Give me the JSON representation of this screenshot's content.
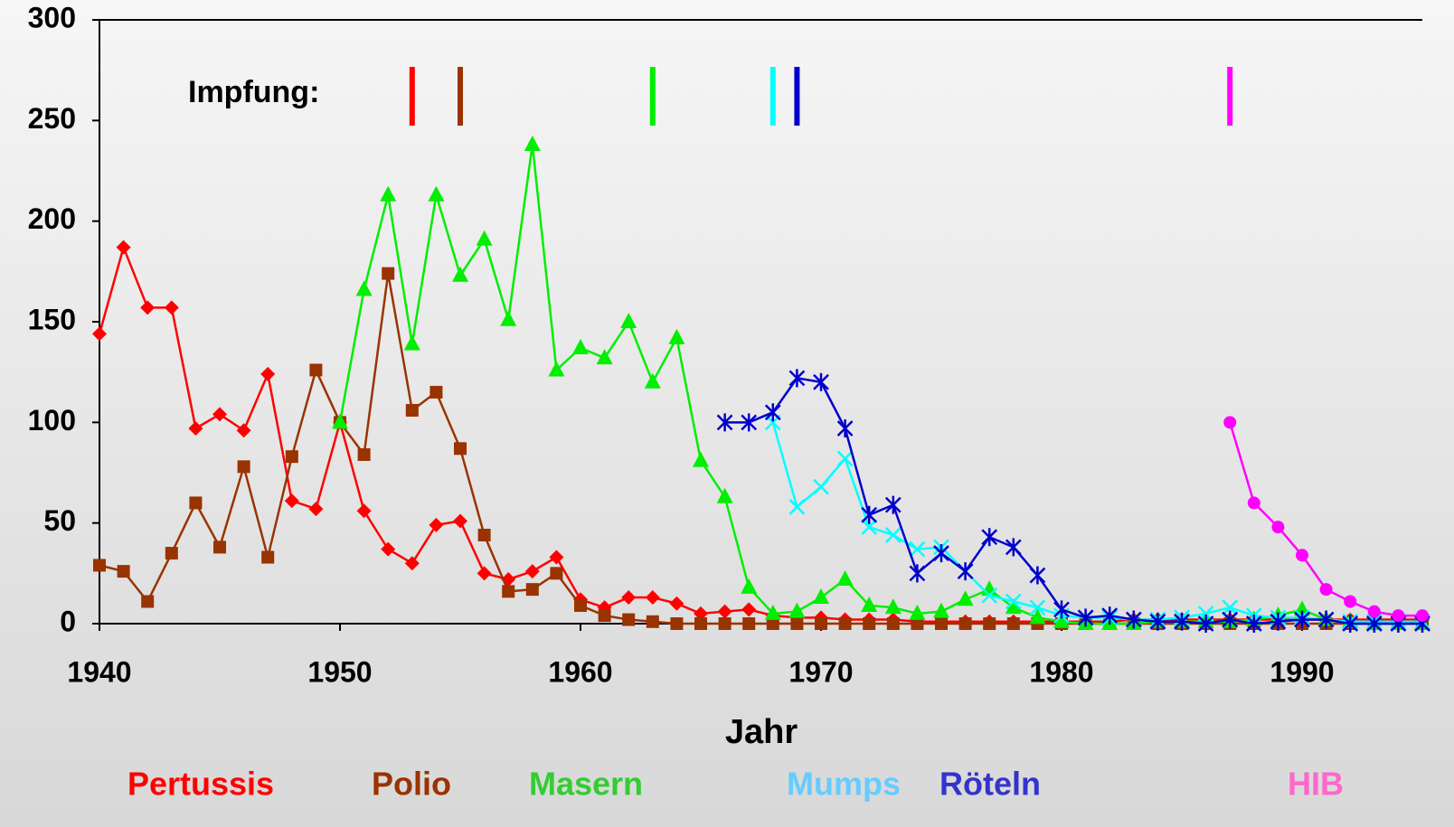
{
  "chart_data": {
    "type": "line",
    "xlabel": "Jahr",
    "annotation": "Impfung:",
    "x": [
      1940,
      1941,
      1942,
      1943,
      1944,
      1945,
      1946,
      1947,
      1948,
      1949,
      1950,
      1951,
      1952,
      1953,
      1954,
      1955,
      1956,
      1957,
      1958,
      1959,
      1960,
      1961,
      1962,
      1963,
      1964,
      1965,
      1966,
      1967,
      1968,
      1969,
      1970,
      1971,
      1972,
      1973,
      1974,
      1975,
      1976,
      1977,
      1978,
      1979,
      1980,
      1981,
      1982,
      1983,
      1984,
      1985,
      1986,
      1987,
      1988,
      1989,
      1990,
      1991,
      1992,
      1993,
      1994,
      1995
    ],
    "xlim": [
      1940,
      1995
    ],
    "xticks": [
      1940,
      1950,
      1960,
      1970,
      1980,
      1990
    ],
    "ylim": [
      0,
      300
    ],
    "yticks": [
      0,
      50,
      100,
      150,
      200,
      250,
      300
    ],
    "series": [
      {
        "name": "Pertussis",
        "color": "#ff0000",
        "legend_color": "#ff0000",
        "marker": "diamond",
        "vaccination": 1953,
        "values": [
          144,
          187,
          157,
          157,
          97,
          104,
          96,
          124,
          61,
          57,
          100,
          56,
          37,
          30,
          49,
          51,
          25,
          22,
          26,
          33,
          12,
          8,
          13,
          13,
          10,
          5,
          6,
          7,
          4,
          3,
          3,
          2,
          2,
          2,
          1,
          1,
          1,
          1,
          1,
          1,
          1,
          1,
          1,
          2,
          2,
          2,
          2,
          2,
          2,
          2,
          2,
          2,
          2,
          2,
          2,
          2
        ]
      },
      {
        "name": "Polio",
        "color": "#993300",
        "legend_color": "#993300",
        "marker": "square",
        "vaccination": 1955,
        "values": [
          29,
          26,
          11,
          35,
          60,
          38,
          78,
          33,
          83,
          126,
          100,
          84,
          174,
          106,
          115,
          87,
          44,
          16,
          17,
          25,
          9,
          4,
          2,
          1,
          0,
          0,
          0,
          0,
          0,
          0,
          0,
          0,
          0,
          0,
          0,
          0,
          0,
          0,
          0,
          0,
          0,
          0,
          0,
          0,
          0,
          0,
          0,
          0,
          0,
          0,
          0,
          0,
          0,
          0,
          0,
          0
        ]
      },
      {
        "name": "Masern",
        "color": "#00ee00",
        "legend_color": "#33cc33",
        "marker": "triangle",
        "vaccination": 1963,
        "values": [
          null,
          null,
          null,
          null,
          null,
          null,
          null,
          null,
          null,
          null,
          100,
          166,
          213,
          139,
          213,
          173,
          191,
          151,
          238,
          126,
          137,
          132,
          150,
          120,
          142,
          81,
          63,
          18,
          5,
          6,
          13,
          22,
          9,
          8,
          5,
          6,
          12,
          17,
          8,
          3,
          1,
          0,
          0,
          0,
          1,
          1,
          1,
          1,
          2,
          4,
          7,
          2,
          1,
          0,
          0,
          0
        ]
      },
      {
        "name": "Mumps",
        "color": "#00ffff",
        "legend_color": "#66ccff",
        "marker": "x",
        "vaccination": 1968,
        "values": [
          null,
          null,
          null,
          null,
          null,
          null,
          null,
          null,
          null,
          null,
          null,
          null,
          null,
          null,
          null,
          null,
          null,
          null,
          null,
          null,
          null,
          null,
          null,
          null,
          null,
          null,
          null,
          null,
          100,
          58,
          68,
          82,
          48,
          44,
          37,
          38,
          26,
          14,
          11,
          8,
          4,
          3,
          3,
          2,
          2,
          3,
          5,
          8,
          4,
          3,
          3,
          2,
          1,
          1,
          1,
          1
        ]
      },
      {
        "name": "Röteln",
        "color": "#0000cc",
        "legend_color": "#3333cc",
        "marker": "star",
        "vaccination": 1969,
        "values": [
          null,
          null,
          null,
          null,
          null,
          null,
          null,
          null,
          null,
          null,
          null,
          null,
          null,
          null,
          null,
          null,
          null,
          null,
          null,
          null,
          null,
          null,
          null,
          null,
          null,
          null,
          100,
          100,
          105,
          122,
          120,
          97,
          54,
          59,
          25,
          35,
          26,
          43,
          38,
          24,
          7,
          3,
          4,
          2,
          1,
          1,
          0,
          2,
          0,
          1,
          2,
          2,
          0,
          0,
          0,
          0
        ]
      },
      {
        "name": "HIB",
        "color": "#ff00ff",
        "legend_color": "#ff66cc",
        "marker": "circle",
        "vaccination": 1987,
        "values": [
          null,
          null,
          null,
          null,
          null,
          null,
          null,
          null,
          null,
          null,
          null,
          null,
          null,
          null,
          null,
          null,
          null,
          null,
          null,
          null,
          null,
          null,
          null,
          null,
          null,
          null,
          null,
          null,
          null,
          null,
          null,
          null,
          null,
          null,
          null,
          null,
          null,
          null,
          null,
          null,
          null,
          null,
          null,
          null,
          null,
          null,
          null,
          100,
          60,
          48,
          34,
          17,
          11,
          6,
          4,
          4
        ]
      }
    ]
  }
}
